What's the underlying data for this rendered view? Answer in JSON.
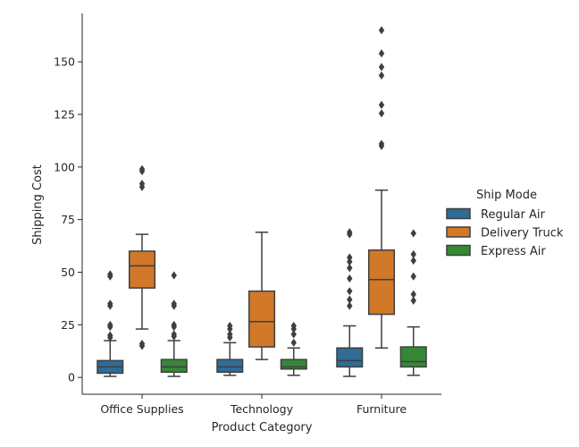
{
  "chart_data": {
    "type": "box",
    "xlabel": "Product Category",
    "ylabel": "Shipping Cost",
    "categories": [
      "Office Supplies",
      "Technology",
      "Furniture"
    ],
    "yticks": [
      0,
      25,
      50,
      75,
      100,
      125,
      150
    ],
    "ylim": [
      -8,
      173
    ],
    "legend_title": "Ship Mode",
    "legend_position": "right",
    "grid": false,
    "series": [
      {
        "name": "Regular Air",
        "color": "#3274a1",
        "boxes": [
          {
            "whisker_low": 0.5,
            "q1": 2,
            "median": 5,
            "q3": 8,
            "whisker_high": 17.5,
            "outliers": [
              19,
              20,
              24,
              25,
              34,
              35,
              48,
              49
            ]
          },
          {
            "whisker_low": 1,
            "q1": 2.5,
            "median": 5,
            "q3": 8.5,
            "whisker_high": 16.5,
            "outliers": [
              19,
              20.5,
              23,
              24.5
            ]
          },
          {
            "whisker_low": 0.5,
            "q1": 5,
            "median": 8,
            "q3": 14,
            "whisker_high": 24.5,
            "outliers": [
              34,
              37,
              41,
              47,
              52,
              55,
              57,
              68,
              69
            ]
          }
        ]
      },
      {
        "name": "Delivery Truck",
        "color": "#e1812c",
        "boxes": [
          {
            "whisker_low": 23,
            "q1": 42.5,
            "median": 53,
            "q3": 60,
            "whisker_high": 68,
            "outliers": [
              15,
              16,
              90.5,
              92,
              98,
              99
            ]
          },
          {
            "whisker_low": 8.5,
            "q1": 14.5,
            "median": 26.5,
            "q3": 41,
            "whisker_high": 69,
            "outliers": []
          },
          {
            "whisker_low": 14,
            "q1": 30,
            "median": 46.5,
            "q3": 60.5,
            "whisker_high": 89,
            "outliers": [
              110,
              111,
              125.5,
              129.5,
              143.5,
              147.5,
              154,
              165
            ]
          }
        ]
      },
      {
        "name": "Express Air",
        "color": "#3a923a",
        "boxes": [
          {
            "whisker_low": 0.5,
            "q1": 2.5,
            "median": 5,
            "q3": 8.5,
            "whisker_high": 17.5,
            "outliers": [
              19.5,
              20.5,
              24,
              25,
              34,
              35,
              48.5
            ]
          },
          {
            "whisker_low": 1,
            "q1": 4,
            "median": 5,
            "q3": 8.5,
            "whisker_high": 14,
            "outliers": [
              16.5,
              20.5,
              23,
              24.5
            ]
          },
          {
            "whisker_low": 1,
            "q1": 5,
            "median": 7.5,
            "q3": 14.5,
            "whisker_high": 24,
            "outliers": [
              36.5,
              39.5,
              48,
              55.5,
              58.5,
              68.5
            ]
          }
        ]
      }
    ]
  }
}
